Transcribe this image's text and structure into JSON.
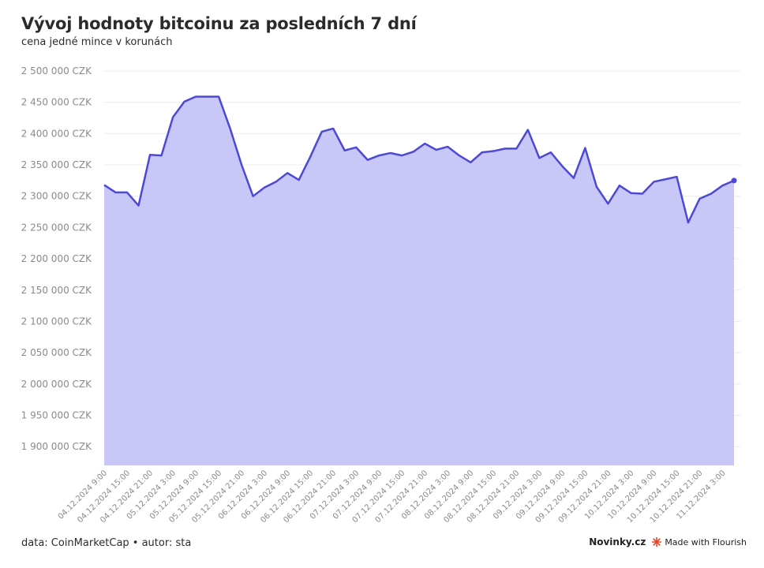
{
  "header": {
    "title": "Vývoj hodnoty bitcoinu za posledních 7 dní",
    "subtitle": "cena jedné mince v korunách"
  },
  "footer": {
    "source": "data: CoinMarketCap • autor: sta",
    "brand": "Novinky.cz",
    "flourish_label": "Made with Flourish",
    "flourish_icon": "flourish-logo-icon"
  },
  "colors": {
    "line": "#4b49d6",
    "area": "#c9c7f7",
    "grid": "#ececec",
    "flourish": "#e8452c"
  },
  "chart_data": {
    "type": "area",
    "title": "Vývoj hodnoty bitcoinu za posledních 7 dní",
    "subtitle": "cena jedné mince v korunách",
    "xlabel": "",
    "ylabel": "",
    "ylim": [
      1870000,
      2510000
    ],
    "grid": true,
    "y_ticks": [
      1900000,
      1950000,
      2000000,
      2050000,
      2100000,
      2150000,
      2200000,
      2250000,
      2300000,
      2350000,
      2400000,
      2450000,
      2500000
    ],
    "y_tick_labels": [
      "1 900 000 CZK",
      "1 950 000 CZK",
      "2 000 000 CZK",
      "2 050 000 CZK",
      "2 100 000 CZK",
      "2 150 000 CZK",
      "2 200 000 CZK",
      "2 250 000 CZK",
      "2 300 000 CZK",
      "2 350 000 CZK",
      "2 400 000 CZK",
      "2 450 000 CZK",
      "2 500 000 CZK"
    ],
    "x_tick_labels": [
      "04.12.2024 9:00",
      "04.12.2024 15:00",
      "04.12.2024 21:00",
      "05.12.2024 3:00",
      "05.12.2024 9:00",
      "05.12.2024 15:00",
      "05.12.2024 21:00",
      "06.12.2024 3:00",
      "06.12.2024 9:00",
      "06.12.2024 15:00",
      "06.12.2024 21:00",
      "07.12.2024 3:00",
      "07.12.2024 9:00",
      "07.12.2024 15:00",
      "07.12.2024 21:00",
      "08.12.2024 3:00",
      "08.12.2024 9:00",
      "08.12.2024 15:00",
      "08.12.2024 21:00",
      "09.12.2024 3:00",
      "09.12.2024 9:00",
      "09.12.2024 15:00",
      "09.12.2024 21:00",
      "10.12.2024 3:00",
      "10.12.2024 9:00",
      "10.12.2024 15:00",
      "10.12.2024 21:00",
      "11.12.2024 3:00"
    ],
    "x_interval_hours": 3,
    "series": [
      {
        "values": [
          2318000,
          2306000,
          2306000,
          2285000,
          2366000,
          2365000,
          2426000,
          2451000,
          2459000,
          2459000,
          2459000,
          2408000,
          2350000,
          2300000,
          2314000,
          2323000,
          2337000,
          2326000,
          2363000,
          2403000,
          2408000,
          2373000,
          2378000,
          2358000,
          2365000,
          2369000,
          2365000,
          2371000,
          2384000,
          2374000,
          2379000,
          2365000,
          2354000,
          2370000,
          2372000,
          2376000,
          2376000,
          2406000,
          2361000,
          2370000,
          2348000,
          2329000,
          2377000,
          2315000,
          2288000,
          2317000,
          2305000,
          2304000,
          2323000,
          2327000,
          2331000,
          2258000,
          2296000,
          2304000,
          2317000,
          2325000
        ]
      }
    ]
  }
}
